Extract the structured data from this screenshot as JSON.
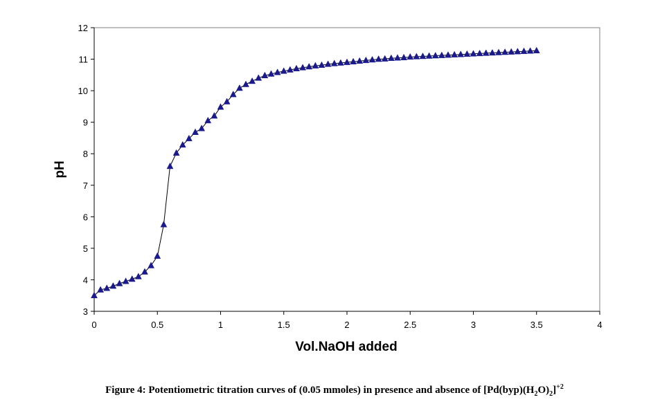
{
  "chart_data": {
    "type": "line",
    "xlabel": "Vol.NaOH added",
    "ylabel": "pH",
    "xlim": [
      0,
      4
    ],
    "ylim": [
      3,
      12
    ],
    "xticks": [
      0,
      0.5,
      1,
      1.5,
      2,
      2.5,
      3,
      3.5,
      4
    ],
    "xtick_labels": [
      "0",
      "0.5",
      "1",
      "1.5",
      "2",
      "2.5",
      "3",
      "3.5",
      "4"
    ],
    "yticks": [
      3,
      4,
      5,
      6,
      7,
      8,
      9,
      10,
      11,
      12
    ],
    "ytick_labels": [
      "3",
      "4",
      "5",
      "6",
      "7",
      "8",
      "9",
      "10",
      "11",
      "12"
    ],
    "grid": false,
    "marker": "triangle",
    "line_color": "#000000",
    "marker_color": "#1a1a8c",
    "series": [
      {
        "x": [
          0,
          0.05,
          0.1,
          0.15,
          0.2,
          0.25,
          0.3,
          0.35,
          0.4,
          0.45,
          0.5,
          0.55,
          0.6,
          0.65,
          0.7,
          0.75,
          0.8,
          0.85,
          0.9,
          0.95,
          1.0,
          1.05,
          1.1,
          1.15,
          1.2,
          1.25,
          1.3,
          1.35,
          1.4,
          1.45,
          1.5,
          1.55,
          1.6,
          1.65,
          1.7,
          1.75,
          1.8,
          1.85,
          1.9,
          1.95,
          2.0,
          2.05,
          2.1,
          2.15,
          2.2,
          2.25,
          2.3,
          2.35,
          2.4,
          2.45,
          2.5,
          2.55,
          2.6,
          2.65,
          2.7,
          2.75,
          2.8,
          2.85,
          2.9,
          2.95,
          3.0,
          3.05,
          3.1,
          3.15,
          3.2,
          3.25,
          3.3,
          3.35,
          3.4,
          3.45,
          3.5
        ],
        "y": [
          3.5,
          3.68,
          3.73,
          3.8,
          3.88,
          3.95,
          4.02,
          4.1,
          4.25,
          4.45,
          4.75,
          5.75,
          7.6,
          8.02,
          8.28,
          8.48,
          8.68,
          8.8,
          9.05,
          9.2,
          9.48,
          9.65,
          9.88,
          10.08,
          10.2,
          10.3,
          10.4,
          10.48,
          10.53,
          10.58,
          10.62,
          10.66,
          10.7,
          10.73,
          10.76,
          10.79,
          10.81,
          10.84,
          10.86,
          10.88,
          10.9,
          10.92,
          10.94,
          10.96,
          10.98,
          11.0,
          11.01,
          11.03,
          11.04,
          11.05,
          11.07,
          11.08,
          11.09,
          11.1,
          11.11,
          11.12,
          11.13,
          11.14,
          11.15,
          11.16,
          11.17,
          11.18,
          11.19,
          11.2,
          11.21,
          11.22,
          11.23,
          11.24,
          11.25,
          11.26,
          11.27
        ]
      }
    ]
  },
  "caption": {
    "prefix": "Figure 4: Potentiometric titration curves of (0.05 mmoles) in presence and absence of [Pd(byp)(H",
    "sub": "2",
    "mid": "O)",
    "sub2": "2",
    "end": "]",
    "sup": "+2"
  }
}
